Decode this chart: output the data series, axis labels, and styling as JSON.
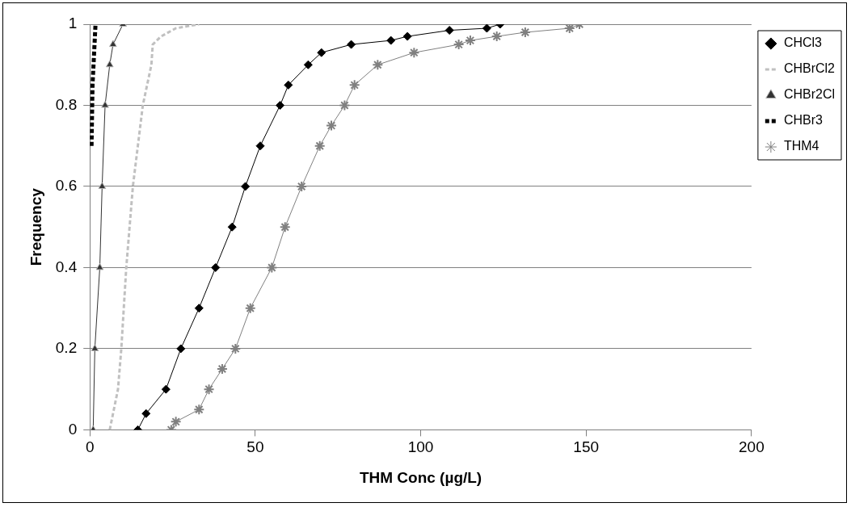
{
  "chart_data": {
    "type": "line",
    "xlabel": "THM Conc (µg/L)",
    "ylabel": "Frequency",
    "xlim": [
      0,
      200
    ],
    "xticks": [
      0,
      50,
      100,
      150,
      200
    ],
    "ylim": [
      0,
      1
    ],
    "yticks": [
      0,
      0.2,
      0.4,
      0.6,
      0.8,
      1
    ],
    "grid": "y",
    "legend": "top right",
    "series": [
      {
        "name": "CHCl3",
        "color": "#000000",
        "marker": "diamond",
        "line_style": "solid",
        "x": [
          14.5,
          17,
          23,
          27.5,
          33,
          38,
          43,
          47,
          51.5,
          57.5,
          60,
          66,
          70,
          79,
          91,
          96,
          108.7,
          120,
          124
        ],
        "values": [
          0,
          0.04,
          0.1,
          0.2,
          0.3,
          0.4,
          0.5,
          0.6,
          0.7,
          0.8,
          0.85,
          0.9,
          0.93,
          0.95,
          0.96,
          0.97,
          0.985,
          0.99,
          1
        ]
      },
      {
        "name": "CHBrCl2",
        "color": "#c0c0c0",
        "marker": "none",
        "line_style": "dashed",
        "x": [
          6,
          8.5,
          9.5,
          11,
          13,
          16,
          18.6,
          19,
          21.5,
          26,
          33
        ],
        "values": [
          0,
          0.1,
          0.2,
          0.4,
          0.6,
          0.8,
          0.9,
          0.95,
          0.97,
          0.99,
          1
        ]
      },
      {
        "name": "CHBr2Cl",
        "color": "#333333",
        "marker": "triangle",
        "line_style": "solid",
        "x": [
          1,
          1.5,
          3,
          3.7,
          4.6,
          6,
          7,
          10
        ],
        "values": [
          0,
          0.2,
          0.4,
          0.6,
          0.8,
          0.9,
          0.95,
          1
        ]
      },
      {
        "name": "CHBr3",
        "color": "#000000",
        "marker": "none",
        "line_style": "dashed",
        "x": [
          0.5,
          0.8,
          1.7
        ],
        "values": [
          0.7,
          0.85,
          1
        ]
      },
      {
        "name": "THM4",
        "color": "#808080",
        "marker": "cross",
        "line_style": "solid",
        "x": [
          24.6,
          26,
          33,
          36,
          40,
          44,
          48.5,
          55,
          59,
          64,
          69.5,
          73,
          77,
          80,
          87,
          98,
          111.5,
          115,
          123,
          131.6,
          145,
          148
        ],
        "values": [
          0,
          0.02,
          0.05,
          0.1,
          0.15,
          0.2,
          0.3,
          0.4,
          0.5,
          0.6,
          0.7,
          0.75,
          0.8,
          0.85,
          0.9,
          0.93,
          0.95,
          0.96,
          0.97,
          0.98,
          0.99,
          1
        ]
      }
    ]
  }
}
